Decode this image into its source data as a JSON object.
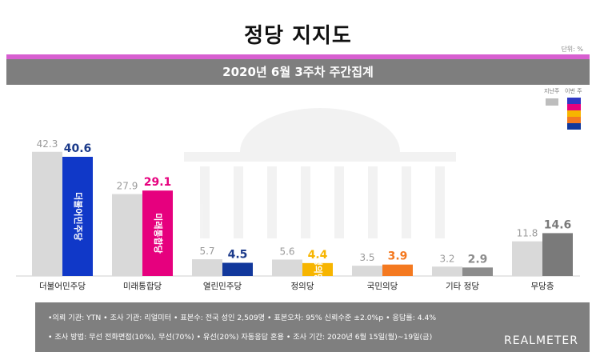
{
  "header": {
    "title": "정당 지지도",
    "unit": "단위: %",
    "subtitle": "2020년 6월 3주차 주간집계"
  },
  "legend": {
    "previous_label": "지난주",
    "current_label": "이번 주",
    "previous_color": "#bdbdbd",
    "current_colors": [
      "#2f38c4",
      "#e6007e",
      "#f7b500",
      "#f47920",
      "#12389c"
    ]
  },
  "chart_data": {
    "type": "bar",
    "categories": [
      "더불어민주당",
      "미래통합당",
      "열린민주당",
      "정의당",
      "국민의당",
      "기타 정당",
      "무당층"
    ],
    "series": [
      {
        "name": "지난주",
        "values": [
          42.3,
          27.9,
          5.7,
          5.6,
          3.5,
          3.2,
          11.8
        ],
        "color": "#d9d9d9"
      },
      {
        "name": "이번 주",
        "values": [
          40.6,
          29.1,
          4.5,
          4.4,
          3.9,
          2.9,
          14.6
        ],
        "colors": [
          "#1038c8",
          "#e6007e",
          "#12389c",
          "#f7b500",
          "#f47920",
          "#8c8c8c",
          "#7a7a7a"
        ],
        "label_colors": [
          "#1b3a8a",
          "#e6007e",
          "#1b3a8a",
          "#f7b500",
          "#f47920",
          "#8c8c8c",
          "#7a7a7a"
        ]
      }
    ],
    "bar_labels": [
      "더불어민주당",
      "미래통합당",
      "",
      "정의당",
      "",
      "",
      ""
    ],
    "ylim": [
      0,
      45
    ]
  },
  "footer": {
    "line1": "•의뢰 기관: YTN • 조사 기관: 리얼미터 • 표본수: 전국 성인 2,509명 • 표본오차: 95% 신뢰수준 ±2.0%p • 응답률: 4.4%",
    "line2": "• 조사 방법: 무선 전화면접(10%), 무선(70%) • 유선(20%) 자동응답 혼용 • 조사 기간: 2020년 6월 15일(월)~19일(금)",
    "brand": "REALMETER"
  }
}
